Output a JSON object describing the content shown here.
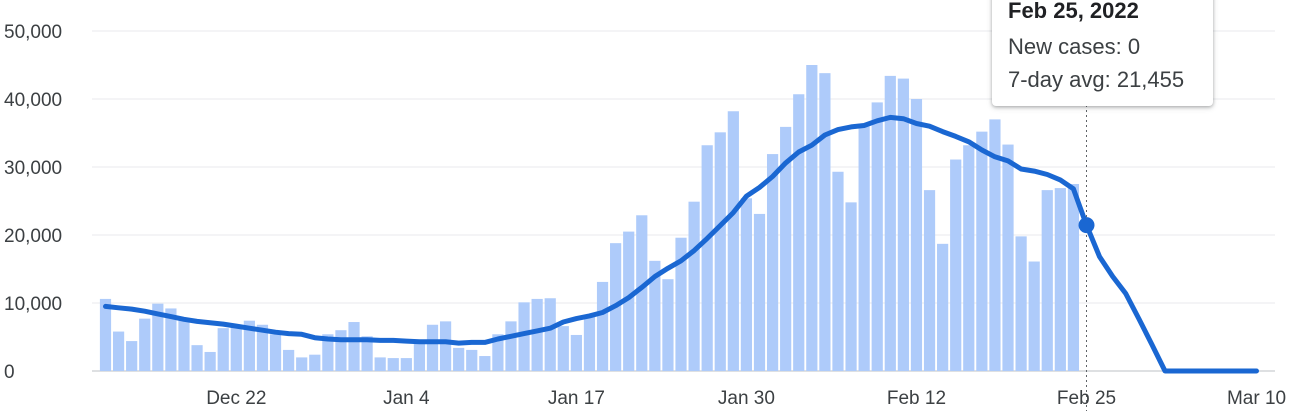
{
  "chart_data": {
    "type": "bar",
    "x_ticks": [
      "Dec 22",
      "Jan 4",
      "Jan 17",
      "Jan 30",
      "Feb 12",
      "Feb 25",
      "Mar 10"
    ],
    "y_ticks": [
      "0",
      "10,000",
      "20,000",
      "30,000",
      "40,000",
      "50,000"
    ],
    "ylim": [
      0,
      50000
    ],
    "grid": true,
    "series": [
      {
        "type": "bar",
        "start_date": "Dec 12",
        "values": [
          10600,
          5800,
          4400,
          7700,
          9900,
          9200,
          7400,
          3800,
          2800,
          6300,
          6400,
          7400,
          6800,
          5400,
          3100,
          2000,
          2400,
          5400,
          6000,
          7200,
          5100,
          2000,
          1900,
          1900,
          4200,
          6800,
          7300,
          3400,
          3100,
          2200,
          5400,
          7300,
          10100,
          10600,
          10700,
          6600,
          5300,
          8200,
          13100,
          18800,
          20500,
          22900,
          16200,
          13500,
          19600,
          24900,
          33200,
          35100,
          38200,
          25400,
          23100,
          31900,
          35900,
          40700,
          45000,
          43800,
          29300,
          24800,
          36000,
          39500,
          43400,
          43000,
          40000,
          26600,
          18700,
          31100,
          33200,
          35200,
          37000,
          33300,
          19800,
          16100,
          26600,
          26900,
          27500
        ]
      },
      {
        "type": "line",
        "start_date": "Dec 12",
        "values": [
          9500,
          9300,
          9100,
          8800,
          8400,
          8000,
          7600,
          7300,
          7100,
          6900,
          6600,
          6300,
          6000,
          5700,
          5500,
          5400,
          4900,
          4700,
          4600,
          4600,
          4600,
          4500,
          4500,
          4400,
          4300,
          4300,
          4300,
          4100,
          4200,
          4200,
          4700,
          5100,
          5500,
          5900,
          6300,
          7200,
          7700,
          8100,
          8600,
          9600,
          10800,
          12300,
          13900,
          15100,
          16200,
          17700,
          19500,
          21400,
          23300,
          25700,
          27000,
          28600,
          30600,
          32200,
          33200,
          34700,
          35500,
          35900,
          36100,
          36800,
          37300,
          37100,
          36400,
          36000,
          35200,
          34500,
          33700,
          32500,
          31500,
          30900,
          29700,
          29400,
          28900,
          28100,
          26800,
          21455,
          16800,
          13900,
          11400,
          7700,
          3900,
          0,
          0,
          0,
          0,
          0,
          0,
          0,
          0
        ]
      }
    ],
    "highlight_date": "Feb 25"
  },
  "tooltip": {
    "date": "Feb 25, 2022",
    "new_cases": "New cases: 0",
    "avg": "7-day avg: 21,455"
  },
  "colors": {
    "bars": "#aecbfa",
    "line": "#1a67d2"
  }
}
